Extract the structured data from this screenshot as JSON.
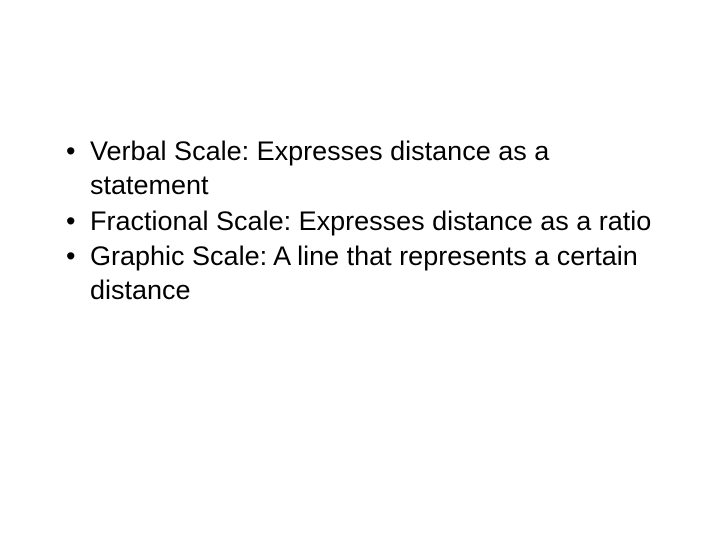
{
  "slide": {
    "bullets": [
      "Verbal Scale: Expresses distance as a statement",
      "Fractional Scale: Expresses distance as a ratio",
      "Graphic Scale: A line that represents a certain distance"
    ],
    "text_color": "#000000",
    "background_color": "#ffffff",
    "font_size": 27,
    "font_family": "Arial"
  }
}
